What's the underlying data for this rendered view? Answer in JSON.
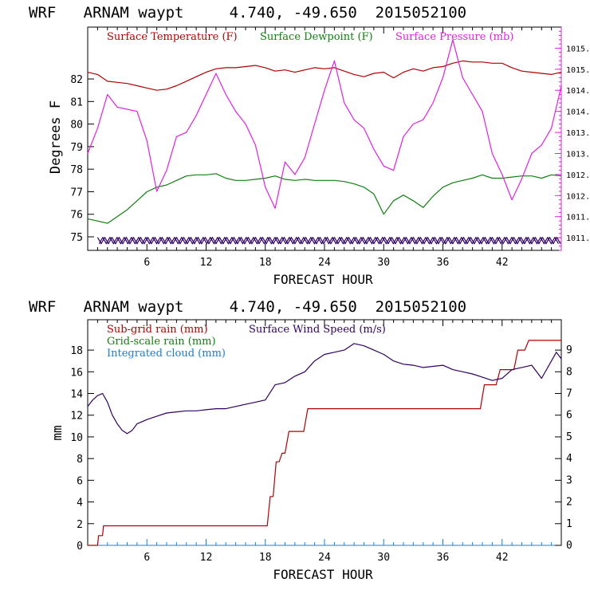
{
  "chart_data": [
    {
      "type": "line",
      "title": "WRF   ARNAM waypt     4.740, -49.650  2015052100",
      "xlabel": "FORECAST HOUR",
      "ylabel": "Degrees F",
      "xlim": [
        0,
        48
      ],
      "ylim": [
        74.4,
        84.3
      ],
      "y2lim": [
        1010.7,
        1016.0
      ],
      "xticks": [
        6,
        12,
        18,
        24,
        30,
        36,
        42
      ],
      "yticks": [
        75,
        76,
        77,
        78,
        79,
        80,
        81,
        82
      ],
      "y2ticks": [
        "1011.0",
        "1011.5",
        "1012.0",
        "1012.5",
        "1013.0",
        "1013.5",
        "1014.0",
        "1014.5",
        "1015.0",
        "1015.5"
      ],
      "legend_position": "top-left",
      "colors": {
        "temperature": "#b00000",
        "dewpoint": "#108010",
        "pressure": "#e020e0",
        "wind": "#300060"
      },
      "series": [
        {
          "name": "Surface Temperature (F)",
          "axis": "left",
          "x": [
            0,
            1,
            2,
            3,
            4,
            5,
            6,
            7,
            8,
            9,
            10,
            11,
            12,
            13,
            14,
            15,
            16,
            17,
            18,
            19,
            20,
            21,
            22,
            23,
            24,
            25,
            26,
            27,
            28,
            29,
            30,
            31,
            32,
            33,
            34,
            35,
            36,
            37,
            38,
            39,
            40,
            41,
            42,
            43,
            44,
            45,
            46,
            47,
            48
          ],
          "y": [
            82.3,
            82.2,
            81.9,
            81.85,
            81.8,
            81.7,
            81.6,
            81.5,
            81.55,
            81.7,
            81.9,
            82.1,
            82.3,
            82.45,
            82.5,
            82.5,
            82.55,
            82.6,
            82.5,
            82.35,
            82.4,
            82.3,
            82.4,
            82.5,
            82.45,
            82.5,
            82.35,
            82.2,
            82.1,
            82.25,
            82.3,
            82.05,
            82.3,
            82.45,
            82.35,
            82.5,
            82.55,
            82.7,
            82.8,
            82.75,
            82.75,
            82.7,
            82.7,
            82.5,
            82.35,
            82.3,
            82.25,
            82.2,
            82.3
          ]
        },
        {
          "name": "Surface Dewpoint (F)",
          "axis": "left",
          "x": [
            0,
            1,
            2,
            3,
            4,
            5,
            6,
            7,
            8,
            9,
            10,
            11,
            12,
            13,
            14,
            15,
            16,
            17,
            18,
            19,
            20,
            21,
            22,
            23,
            24,
            25,
            26,
            27,
            28,
            29,
            30,
            31,
            32,
            33,
            34,
            35,
            36,
            37,
            38,
            39,
            40,
            41,
            42,
            43,
            44,
            45,
            46,
            47,
            48
          ],
          "y": [
            75.8,
            75.7,
            75.6,
            75.9,
            76.2,
            76.6,
            77.0,
            77.2,
            77.3,
            77.5,
            77.7,
            77.75,
            77.75,
            77.8,
            77.6,
            77.5,
            77.5,
            77.55,
            77.6,
            77.7,
            77.55,
            77.5,
            77.55,
            77.5,
            77.5,
            77.5,
            77.45,
            77.35,
            77.2,
            76.9,
            76.0,
            76.6,
            76.85,
            76.6,
            76.3,
            76.8,
            77.2,
            77.4,
            77.5,
            77.6,
            77.75,
            77.6,
            77.6,
            77.65,
            77.7,
            77.7,
            77.6,
            77.75,
            77.7
          ]
        },
        {
          "name": "Surface Pressure (mb)",
          "axis": "right",
          "x": [
            0,
            1,
            2,
            3,
            4,
            5,
            6,
            7,
            8,
            9,
            10,
            11,
            12,
            13,
            14,
            15,
            16,
            17,
            18,
            19,
            20,
            21,
            22,
            23,
            24,
            25,
            26,
            27,
            28,
            29,
            30,
            31,
            32,
            33,
            34,
            35,
            36,
            37,
            38,
            39,
            40,
            41,
            42,
            43,
            44,
            45,
            46,
            47,
            48
          ],
          "y": [
            1013.0,
            1013.6,
            1014.4,
            1014.1,
            1014.05,
            1014.0,
            1013.3,
            1012.1,
            1012.6,
            1013.4,
            1013.5,
            1013.9,
            1014.4,
            1014.9,
            1014.4,
            1014.0,
            1013.7,
            1013.2,
            1012.2,
            1011.7,
            1012.8,
            1012.5,
            1012.9,
            1013.7,
            1014.5,
            1015.2,
            1014.2,
            1013.8,
            1013.6,
            1013.1,
            1012.7,
            1012.6,
            1013.4,
            1013.7,
            1013.8,
            1014.2,
            1014.8,
            1015.7,
            1014.8,
            1014.4,
            1014.0,
            1013.0,
            1012.5,
            1011.9,
            1012.4,
            1013.0,
            1013.2,
            1013.6,
            1014.6
          ]
        },
        {
          "name": "Surface Wind Speed (m/s)",
          "axis": "left",
          "x": [
            1,
            48
          ],
          "y": [
            74.8,
            74.85
          ]
        }
      ]
    },
    {
      "type": "line",
      "title": "WRF   ARNAM waypt     4.740, -49.650  2015052100",
      "xlabel": "FORECAST HOUR",
      "ylabel": "mm",
      "xlim": [
        0,
        48
      ],
      "ylim": [
        0,
        20.8
      ],
      "y2lim": [
        0,
        10.4
      ],
      "xticks": [
        6,
        12,
        18,
        24,
        30,
        36,
        42
      ],
      "yticks": [
        0,
        2,
        4,
        6,
        8,
        10,
        12,
        14,
        16,
        18
      ],
      "y2ticks": [
        0,
        1,
        2,
        3,
        4,
        5,
        6,
        7,
        8,
        9
      ],
      "legend_position": "top-left",
      "colors": {
        "subgrid": "#b00000",
        "gridscale": "#108010",
        "cloud": "#1080e0",
        "wind": "#300060"
      },
      "series": [
        {
          "name": "Sub-grid rain (mm)",
          "axis": "left",
          "x": [
            0,
            1.0,
            1.1,
            1.5,
            1.6,
            18.2,
            18.5,
            18.8,
            19.1,
            19.4,
            19.7,
            20.0,
            20.4,
            20.7,
            21.4,
            21.9,
            22.3,
            39.8,
            40.2,
            41.4,
            41.8,
            43.2,
            43.6,
            44.3,
            44.7,
            48
          ],
          "y": [
            0,
            0,
            0.9,
            0.9,
            1.8,
            1.8,
            4.5,
            4.5,
            7.7,
            7.7,
            8.5,
            8.5,
            10.5,
            10.5,
            10.5,
            10.5,
            12.6,
            12.6,
            14.8,
            14.8,
            16.2,
            16.2,
            18.0,
            18.0,
            18.9,
            18.9
          ]
        },
        {
          "name": "Grid-scale rain (mm)",
          "axis": "left",
          "x": [],
          "y": []
        },
        {
          "name": "Integrated cloud (mm)",
          "axis": "left",
          "x": [],
          "y": []
        },
        {
          "name": "Surface Wind Speed (m/s)",
          "axis": "right",
          "x": [
            0,
            0.5,
            1,
            1.5,
            2,
            2.5,
            3,
            3.5,
            4,
            4.5,
            5,
            5.5,
            6,
            7,
            8,
            9,
            10,
            11,
            12,
            13,
            14,
            15,
            16,
            17,
            18,
            19,
            20,
            21,
            22,
            23,
            24,
            25,
            26,
            27,
            28,
            29,
            30,
            31,
            32,
            33,
            34,
            35,
            36,
            37,
            38,
            39,
            40,
            41,
            42,
            43,
            44,
            45,
            46,
            47,
            47.5,
            48
          ],
          "y": [
            6.4,
            6.7,
            6.9,
            7.0,
            6.6,
            6.0,
            5.6,
            5.3,
            5.15,
            5.3,
            5.6,
            5.7,
            5.8,
            5.95,
            6.1,
            6.15,
            6.2,
            6.2,
            6.25,
            6.3,
            6.3,
            6.4,
            6.5,
            6.6,
            6.7,
            7.4,
            7.5,
            7.8,
            8.0,
            8.5,
            8.8,
            8.9,
            9.0,
            9.3,
            9.2,
            9.0,
            8.8,
            8.5,
            8.35,
            8.3,
            8.2,
            8.25,
            8.3,
            8.1,
            8.0,
            7.9,
            7.75,
            7.6,
            7.7,
            8.1,
            8.2,
            8.3,
            7.7,
            8.5,
            8.9,
            8.6
          ]
        }
      ]
    }
  ]
}
